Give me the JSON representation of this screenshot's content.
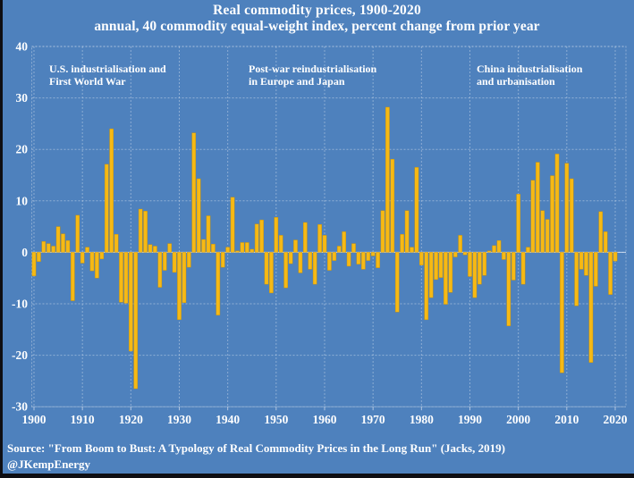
{
  "title": "Real commodity prices, 1900-2020",
  "subtitle": "annual, 40 commodity equal-weight index, percent change from prior year",
  "annotations": [
    {
      "line1": "U.S. industrialisation and",
      "line2": "First World War"
    },
    {
      "line1": "Post-war reindustrialisation",
      "line2": "in Europe and Japan"
    },
    {
      "line1": "China industrialisation",
      "line2": "and urbanisation"
    }
  ],
  "source_line": "Source: \"From Boom to Bust: A Typology of Real Commodity Prices in the Long Run\" (Jacks, 2019)",
  "handle": "@JKempEnergy",
  "colors": {
    "background": "#4E81BD",
    "bar": "#F6B915",
    "bar_edge": "#C98F00",
    "gridline": "#C9D7EA",
    "zero_line": "#DDE7F4",
    "text": "#FFFFFF",
    "edge_strip": "#0E0E13"
  },
  "chart_data": {
    "type": "bar",
    "title": "Real commodity prices, 1900-2020",
    "subtitle": "annual, 40 commodity equal-weight index, percent change from prior year",
    "xlabel": "",
    "ylabel": "percent change from prior year",
    "first_year": 1900,
    "last_year": 2020,
    "x_tick_labels": [
      "1900",
      "1910",
      "1920",
      "1930",
      "1940",
      "1950",
      "1960",
      "1970",
      "1980",
      "1990",
      "2000",
      "2010",
      "2020"
    ],
    "y_tick_labels": [
      "40",
      "30",
      "20",
      "10",
      "0",
      "-10",
      "-20",
      "-30"
    ],
    "y_ticks": [
      40,
      30,
      20,
      10,
      0,
      -10,
      -20,
      -30
    ],
    "ylim": [
      -30,
      40
    ],
    "grid": "dashed",
    "legend": "none",
    "values": [
      -4.6,
      -1.8,
      2.1,
      1.7,
      1.2,
      5.0,
      3.6,
      2.3,
      -9.4,
      7.2,
      -2.1,
      1.0,
      -3.6,
      -5.0,
      -1.3,
      17.1,
      24.0,
      3.5,
      -9.7,
      -9.9,
      -19.2,
      -26.5,
      8.4,
      8.0,
      1.5,
      1.2,
      -6.8,
      -3.5,
      1.7,
      -3.9,
      -13.1,
      -9.8,
      -2.9,
      23.2,
      14.3,
      2.5,
      7.1,
      1.6,
      -12.2,
      -2.9,
      1.0,
      10.7,
      0.3,
      1.9,
      1.9,
      0.6,
      5.5,
      6.3,
      -6.2,
      -7.9,
      6.8,
      3.3,
      -6.9,
      -2.2,
      2.4,
      -4.0,
      5.8,
      -3.3,
      -6.2,
      5.4,
      3.3,
      -3.5,
      -1.6,
      1.2,
      4.0,
      -2.7,
      1.7,
      -2.3,
      -3.3,
      -1.6,
      -0.7,
      -3.0,
      8.1,
      28.2,
      18.1,
      -11.6,
      3.5,
      8.1,
      1.0,
      16.5,
      -2.5,
      -13.1,
      -8.8,
      -5.3,
      -4.9,
      -10.1,
      -7.8,
      -0.9,
      3.3,
      -0.5,
      -4.7,
      -8.8,
      -6.2,
      -4.5,
      0.3,
      1.3,
      2.3,
      -1.4,
      -14.3,
      -5.4,
      11.3,
      -6.2,
      1.0,
      14.0,
      17.5,
      8.1,
      6.4,
      14.9,
      19.1,
      -23.4,
      17.3,
      14.3,
      -10.4,
      -3.3,
      -4.5,
      -21.4,
      -6.6,
      7.9,
      4.0,
      -8.2,
      -1.7
    ]
  }
}
